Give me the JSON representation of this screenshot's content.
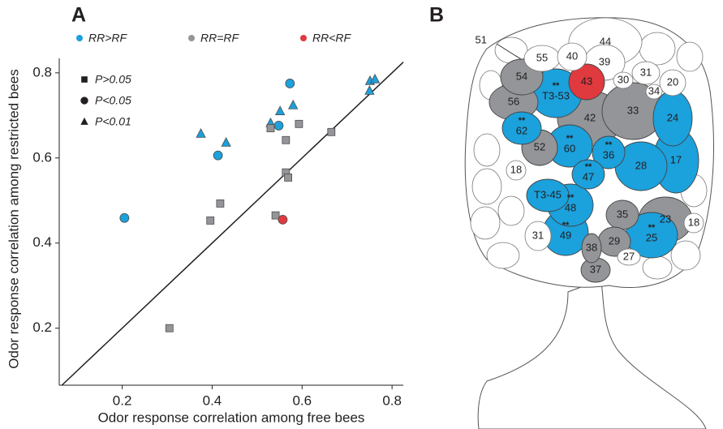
{
  "chart_data": {
    "type": "scatter",
    "panel_label": "A",
    "x_label": "Odor response correlation among free bees",
    "y_label": "Odor response correlation among restricted bees",
    "xlim": [
      0.06,
      0.825
    ],
    "ylim": [
      0.066,
      0.834
    ],
    "xticks": [
      0.2,
      0.4,
      0.6,
      0.8
    ],
    "yticks": [
      0.2,
      0.4,
      0.6,
      0.8
    ],
    "diagonal": true,
    "markers": [
      {
        "name": "P>0.05",
        "marker": "square"
      },
      {
        "name": "P<0.05",
        "marker": "circle"
      },
      {
        "name": "P<0.01",
        "marker": "triangle"
      }
    ],
    "series": [
      {
        "name": "RR>RF",
        "color": "#1ba1dc",
        "x": [
          0.205,
          0.413,
          0.548,
          0.573,
          0.375,
          0.431,
          0.53,
          0.551,
          0.58,
          0.75,
          0.751,
          0.762
        ],
        "y": [
          0.459,
          0.606,
          0.676,
          0.775,
          0.657,
          0.636,
          0.682,
          0.71,
          0.724,
          0.758,
          0.781,
          0.785
        ],
        "marker": [
          "circle",
          "circle",
          "circle",
          "circle",
          "triangle",
          "triangle",
          "triangle",
          "triangle",
          "triangle",
          "triangle",
          "triangle",
          "triangle"
        ]
      },
      {
        "name": "RR=RF",
        "color": "#939598",
        "x": [
          0.305,
          0.396,
          0.418,
          0.53,
          0.564,
          0.593,
          0.564,
          0.569,
          0.541,
          0.665
        ],
        "y": [
          0.2,
          0.453,
          0.493,
          0.67,
          0.642,
          0.68,
          0.566,
          0.554,
          0.465,
          0.661
        ],
        "marker": [
          "square",
          "square",
          "square",
          "square",
          "square",
          "square",
          "square",
          "square",
          "square",
          "square"
        ]
      },
      {
        "name": "RR<RF",
        "color": "#e0393e",
        "x": [
          0.557
        ],
        "y": [
          0.455
        ],
        "marker": [
          "circle"
        ]
      }
    ]
  },
  "diagram": {
    "panel_label": "B",
    "leader_label": "51",
    "nodes": [
      {
        "label": "44",
        "color": "#ffffff"
      },
      {
        "label": "55",
        "color": "#ffffff"
      },
      {
        "label": "40",
        "color": "#ffffff"
      },
      {
        "label": "39",
        "color": "#ffffff"
      },
      {
        "label": "31",
        "color": "#ffffff"
      },
      {
        "label": "20",
        "color": "#ffffff"
      },
      {
        "label": "30",
        "color": "#ffffff"
      },
      {
        "label": "34",
        "color": "#ffffff"
      },
      {
        "label": "54",
        "color": "#939598"
      },
      {
        "label": "43",
        "color": "#e0393e"
      },
      {
        "label": "T3-53",
        "color": "#1ba1dc",
        "stars": "**"
      },
      {
        "label": "56",
        "color": "#939598"
      },
      {
        "label": "33",
        "color": "#939598"
      },
      {
        "label": "24",
        "color": "#1ba1dc"
      },
      {
        "label": "42",
        "color": "#939598"
      },
      {
        "label": "62",
        "color": "#1ba1dc",
        "stars": "**"
      },
      {
        "label": "52",
        "color": "#939598"
      },
      {
        "label": "60",
        "color": "#1ba1dc",
        "stars": "**"
      },
      {
        "label": "36",
        "color": "#1ba1dc",
        "stars": "**"
      },
      {
        "label": "28",
        "color": "#1ba1dc"
      },
      {
        "label": "17",
        "color": "#1ba1dc"
      },
      {
        "label": "18",
        "color": "#ffffff"
      },
      {
        "label": "T3-45",
        "color": "#1ba1dc"
      },
      {
        "label": "47",
        "color": "#1ba1dc",
        "stars": "**"
      },
      {
        "label": "48",
        "color": "#1ba1dc",
        "stars": "**"
      },
      {
        "label": "35",
        "color": "#939598"
      },
      {
        "label": "23",
        "color": "#939598"
      },
      {
        "label": "18",
        "color": "#ffffff"
      },
      {
        "label": "29",
        "color": "#939598"
      },
      {
        "label": "38",
        "color": "#939598"
      },
      {
        "label": "49",
        "color": "#1ba1dc",
        "stars": "**"
      },
      {
        "label": "25",
        "color": "#1ba1dc",
        "stars": "**"
      },
      {
        "label": "31",
        "color": "#ffffff"
      },
      {
        "label": "37",
        "color": "#939598"
      },
      {
        "label": "27",
        "color": "#ffffff"
      }
    ]
  }
}
